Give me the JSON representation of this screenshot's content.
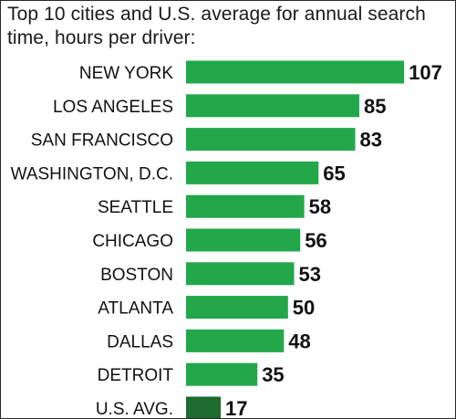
{
  "chart_data": {
    "type": "bar",
    "orientation": "horizontal",
    "title": "Top 10 cities and U.S. average for annual search time, hours per driver:",
    "categories": [
      "NEW YORK",
      "LOS ANGELES",
      "SAN FRANCISCO",
      "WASHINGTON, D.C.",
      "SEATTLE",
      "CHICAGO",
      "BOSTON",
      "ATLANTA",
      "DALLAS",
      "DETROIT",
      "U.S. AVG."
    ],
    "values": [
      107,
      85,
      83,
      65,
      58,
      56,
      53,
      50,
      48,
      35,
      17
    ],
    "bar_colors": [
      "#22a84a",
      "#22a84a",
      "#22a84a",
      "#22a84a",
      "#22a84a",
      "#22a84a",
      "#22a84a",
      "#22a84a",
      "#22a84a",
      "#22a84a",
      "#1d6b2f"
    ],
    "grid": false,
    "legend": "none"
  }
}
